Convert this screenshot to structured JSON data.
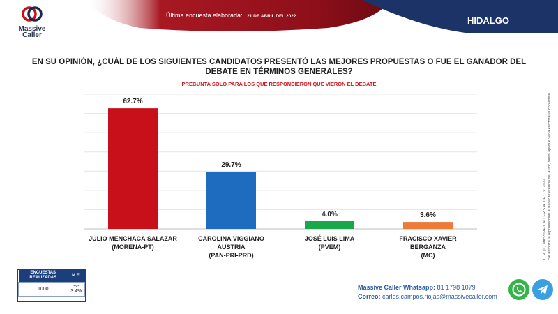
{
  "header": {
    "brand": "Massive Caller",
    "brand_line1": "Massive",
    "brand_line2": "Caller",
    "survey_label": "Última encuesta elaborada:",
    "survey_date": "21 DE ABRIL DEL 2022",
    "state": "HIDALGO"
  },
  "question": "EN SU OPINIÓN, ¿CUÁL DE LOS SIGUIENTES CANDIDATOS PRESENTÓ LAS MEJORES PROPUESTAS O FUE EL GANADOR DEL DEBATE EN TÉRMINOS GENERALES?",
  "subnote": "PREGUNTA SOLO PARA LOS QUE RESPONDIERON QUE VIERON EL DEBATE",
  "colors": {
    "red": "#c8101a",
    "blue": "#1e6cc0",
    "green": "#1aa64a",
    "orange": "#ee7a3a",
    "navy": "#1c3f7c"
  },
  "chart_data": {
    "type": "bar",
    "categories": [
      [
        "JULIO MENCHACA SALAZAR",
        "(MORENA-PT)"
      ],
      [
        "CAROLINA VIGGIANO",
        "AUSTRIA",
        "(PAN-PRI-PRD)"
      ],
      [
        "JOSÉ LUIS LIMA",
        "(PVEM)"
      ],
      [
        "FRACISCO XAVIER",
        "BERGANZA",
        "(MC)"
      ]
    ],
    "values": [
      62.7,
      29.7,
      4.0,
      3.6
    ],
    "value_labels": [
      "62.7%",
      "29.7%",
      "4.0%",
      "3.6%"
    ],
    "bar_colors": [
      "#c8101a",
      "#1e6cc0",
      "#1aa64a",
      "#ee7a3a"
    ],
    "ylim": [
      0,
      70
    ],
    "grid": true
  },
  "me_table": {
    "col1_header": "ENCUESTAS REALIZADAS",
    "col2_header": "M.E.",
    "surveys": "1000",
    "margin": "+/- 3.4%"
  },
  "contact": {
    "whatsapp_label": "Massive Caller Whatsapp:",
    "whatsapp_number": "81 1798 1079",
    "email_label": "Correo:",
    "email": "carlos.campos.riojas@massivecaller.com"
  },
  "legal": {
    "line1": "D.R. (C) MASSIVE CALLER S.A. DE C.V. 2022",
    "line2": "Se autoriza la reproducción al hacer referencia del autor, salvo aplique veda electoral al contenido."
  },
  "icons": {
    "whatsapp": "whatsapp-icon",
    "telegram": "telegram-icon"
  }
}
